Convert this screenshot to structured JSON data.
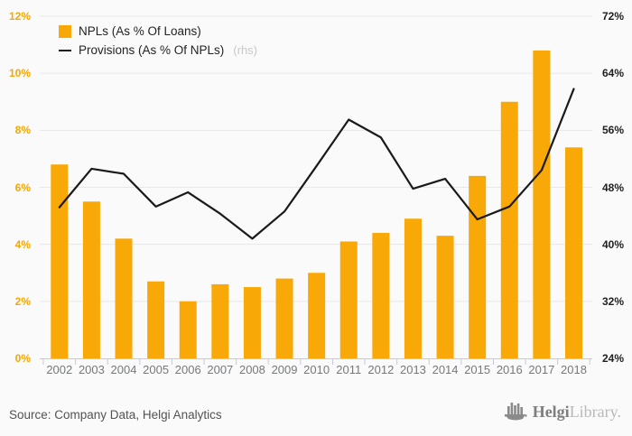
{
  "chart_data": {
    "type": "bar",
    "title": "",
    "categories": [
      "2002",
      "2003",
      "2004",
      "2005",
      "2006",
      "2007",
      "2008",
      "2009",
      "2010",
      "2011",
      "2012",
      "2013",
      "2014",
      "2015",
      "2016",
      "2017",
      "2018"
    ],
    "series": [
      {
        "name": "NPLs (As % Of Loans)",
        "render": "bar",
        "axis": "left",
        "values": [
          6.8,
          5.5,
          4.2,
          2.7,
          2.0,
          2.6,
          2.5,
          2.8,
          3.0,
          4.1,
          4.4,
          4.9,
          4.3,
          6.4,
          9.0,
          10.8,
          7.4
        ]
      },
      {
        "name": "Provisions (As % Of NPLs)",
        "render": "line",
        "axis": "right",
        "values": [
          45.2,
          50.6,
          49.9,
          45.3,
          47.3,
          44.3,
          40.8,
          44.6,
          51.0,
          57.5,
          55.0,
          47.8,
          49.2,
          43.5,
          45.3,
          50.4,
          61.8
        ]
      }
    ],
    "left_axis": {
      "min": 0,
      "max": 12,
      "tick_labels": [
        "12%",
        "10%",
        "8%",
        "6%",
        "4%",
        "2%",
        "0%"
      ]
    },
    "right_axis": {
      "min": 24,
      "max": 72,
      "tick_labels": [
        "72%",
        "64%",
        "56%",
        "48%",
        "40%",
        "32%",
        "24%"
      ]
    },
    "grid": true,
    "legend_position": "top-left"
  },
  "legend": {
    "bar_label": "NPLs (As % Of Loans)",
    "line_label": "Provisions (As % Of NPLs)",
    "line_suffix": "(rhs)"
  },
  "footer": {
    "source": "Source: Company Data, Helgi Analytics",
    "logo_bold": "Helgi",
    "logo_light": "Library."
  },
  "colors": {
    "bar": "#f8a807",
    "line": "#1a1a1a",
    "left_tick_text": "#f5a800",
    "right_tick_text": "#1f1f1f",
    "year_text": "#76787a",
    "grid": "#e8e8e8",
    "axis_line": "#c2cade",
    "background": "#fafafa",
    "rhs_muted": "#c8c8c8",
    "source_text": "#535353",
    "logo_gray": "#8a8a8a"
  }
}
